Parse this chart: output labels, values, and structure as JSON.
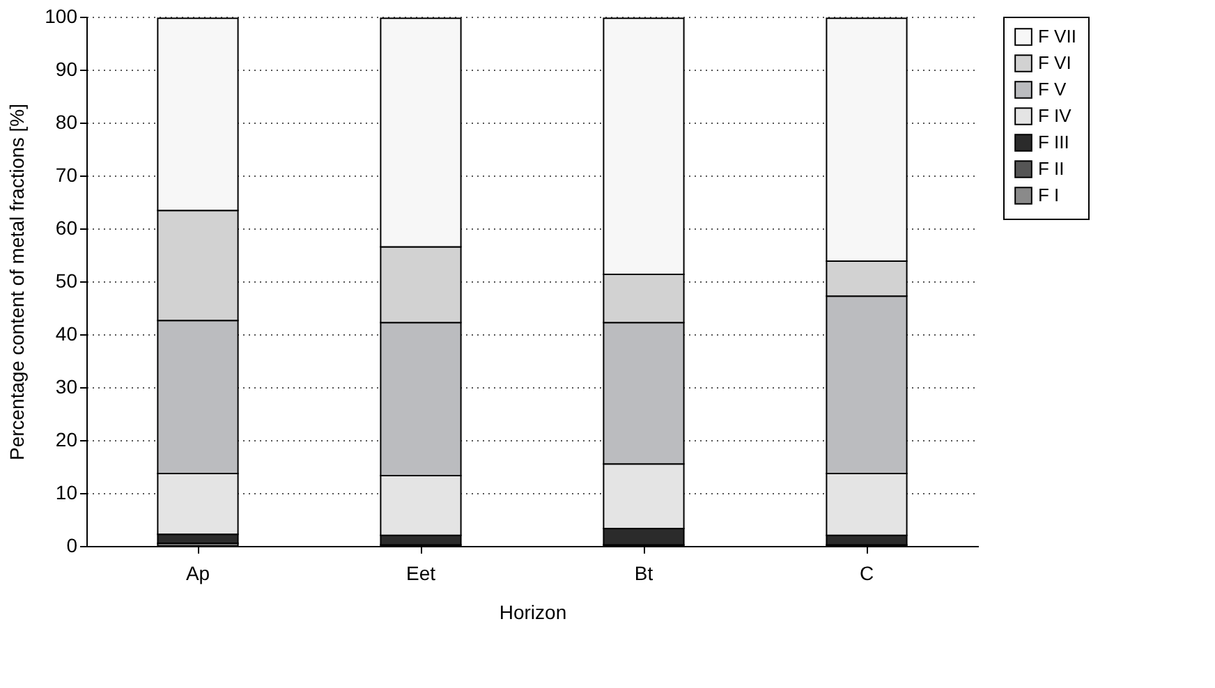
{
  "chart_data": {
    "type": "bar",
    "stacked": true,
    "xlabel": "Horizon",
    "ylabel": "Percentage content of metal fractions [%]",
    "categories": [
      "Ap",
      "Eet",
      "Bt",
      "C"
    ],
    "series": [
      {
        "name": "F I",
        "color": "#8a8a8a",
        "values": [
          0.5,
          null,
          null,
          null
        ]
      },
      {
        "name": "F II",
        "color": "#555555",
        "values": [
          null,
          0.2,
          0.2,
          0.2
        ]
      },
      {
        "name": "F III",
        "color": "#2b2b2b",
        "values": [
          1.7,
          1.8,
          3.1,
          1.8
        ]
      },
      {
        "name": "F IV",
        "color": "#e4e4e4",
        "values": [
          11.5,
          11.3,
          12.2,
          11.7
        ]
      },
      {
        "name": "F V",
        "color": "#bbbcbf",
        "values": [
          28.9,
          28.9,
          26.7,
          33.5
        ]
      },
      {
        "name": "F VI",
        "color": "#d2d2d2",
        "values": [
          20.8,
          14.3,
          9.1,
          6.6
        ]
      },
      {
        "name": "F VII",
        "color": "#f7f7f7",
        "values": [
          36.3,
          43.2,
          48.4,
          45.9
        ]
      }
    ],
    "ylim": [
      0,
      100
    ],
    "yticks": [
      0,
      10,
      20,
      30,
      40,
      50,
      60,
      70,
      80,
      90,
      100
    ],
    "grid": "y",
    "legend": "right"
  }
}
